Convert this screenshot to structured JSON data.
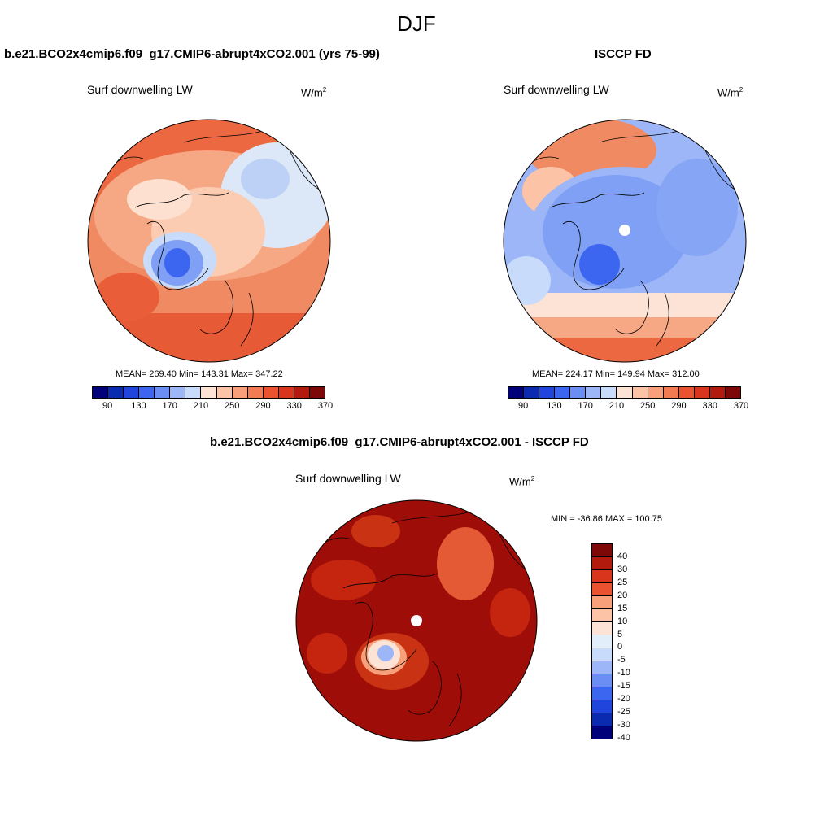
{
  "title": "DJF",
  "panels": {
    "model": {
      "title": "b.e21.BCO2x4cmip6.f09_g17.CMIP6-abrupt4xCO2.001 (yrs 75-99)",
      "variable": "Surf downwelling LW",
      "units_base": "W/m",
      "units_exp": "2",
      "stats": "MEAN= 269.40  Min= 143.31  Max= 347.22"
    },
    "obs": {
      "title": "ISCCP FD",
      "variable": "Surf downwelling LW",
      "units_base": "W/m",
      "units_exp": "2",
      "stats": "MEAN= 224.17  Min= 149.94  Max= 312.00"
    },
    "diff": {
      "title": "b.e21.BCO2x4cmip6.f09_g17.CMIP6-abrupt4xCO2.001 - ISCCP FD",
      "variable": "Surf downwelling LW",
      "units_base": "W/m",
      "units_exp": "2",
      "stats": "MIN = -36.86 MAX = 100.75"
    }
  },
  "colorbar_abs": {
    "colors": [
      "#00007a",
      "#0a2bb0",
      "#1f45dd",
      "#3d66f0",
      "#6b8ef5",
      "#9db6f7",
      "#c9dbfa",
      "#fde3d6",
      "#fcc3a6",
      "#f8a07a",
      "#f27b52",
      "#ea5230",
      "#d9341c",
      "#b31a0e",
      "#7e0808"
    ],
    "tick_labels": [
      "90",
      "130",
      "170",
      "210",
      "250",
      "290",
      "330",
      "370"
    ]
  },
  "colorbar_diff": {
    "colors": [
      "#7e0808",
      "#b31a0e",
      "#d9341c",
      "#ea5230",
      "#f8a07a",
      "#fcc3a6",
      "#fde3d6",
      "#e3eefb",
      "#c9dbfa",
      "#9db6f7",
      "#6b8ef5",
      "#3d66f0",
      "#1f45dd",
      "#0a2bb0",
      "#00007a"
    ],
    "tick_labels": [
      "40",
      "30",
      "25",
      "20",
      "15",
      "10",
      "5",
      "0",
      "-5",
      "-10",
      "-15",
      "-20",
      "-25",
      "-30",
      "-40"
    ]
  }
}
